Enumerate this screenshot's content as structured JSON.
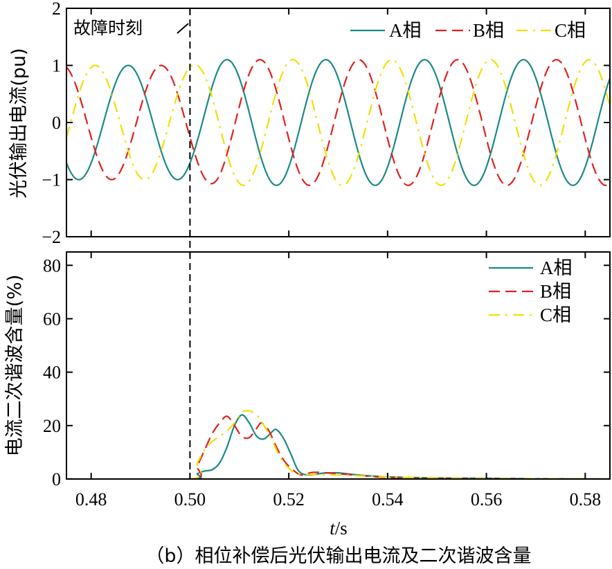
{
  "caption": "（b）相位补偿后光伏输出电流及二次谐波含量",
  "fault_label": "故障时刻",
  "fault_time": 0.5,
  "colors": {
    "A": "#1a8a85",
    "B": "#e0201c",
    "C": "#f0e000",
    "axis": "#000000"
  },
  "chart_data": [
    {
      "type": "line",
      "ylabel": "光伏输出电流(pu)",
      "xlim": [
        0.475,
        0.585
      ],
      "ylim": [
        -2,
        2
      ],
      "yticks": [
        "2",
        "1",
        "0",
        "−1",
        "−2"
      ],
      "yticks_values": [
        2,
        1,
        0,
        -1,
        -2
      ],
      "legend_placement": "top-right",
      "frequency_hz": 50,
      "series": [
        {
          "name": "A相",
          "style": "solid",
          "amplitude_before": 1.0,
          "amplitude_after": 1.1,
          "phase_deg": 0,
          "samples": [
            [
              0.475,
              -1.0
            ],
            [
              0.48,
              -0.5
            ],
            [
              0.485,
              1.0
            ],
            [
              0.49,
              0.0
            ],
            [
              0.495,
              -1.0
            ],
            [
              0.5,
              -0.3
            ],
            [
              0.505,
              1.0
            ],
            [
              0.51,
              -0.6
            ],
            [
              0.515,
              -1.1
            ],
            [
              0.52,
              0.5
            ],
            [
              0.525,
              1.1
            ],
            [
              0.535,
              -1.1
            ],
            [
              0.545,
              1.1
            ],
            [
              0.555,
              -1.1
            ],
            [
              0.565,
              1.1
            ],
            [
              0.575,
              -1.1
            ],
            [
              0.585,
              1.1
            ]
          ]
        },
        {
          "name": "B相",
          "style": "dashed",
          "amplitude_before": 1.0,
          "amplitude_after": 1.1,
          "phase_deg": -120,
          "samples": [
            [
              0.475,
              0.5
            ],
            [
              0.478,
              -0.6
            ],
            [
              0.482,
              -1.0
            ],
            [
              0.492,
              1.0
            ],
            [
              0.5,
              -0.7
            ],
            [
              0.503,
              -0.9
            ],
            [
              0.508,
              1.1
            ],
            [
              0.518,
              -1.1
            ],
            [
              0.528,
              1.1
            ],
            [
              0.538,
              -1.1
            ],
            [
              0.548,
              1.1
            ],
            [
              0.558,
              -1.1
            ],
            [
              0.568,
              1.1
            ],
            [
              0.578,
              -1.1
            ],
            [
              0.585,
              0.0
            ]
          ]
        },
        {
          "name": "C相",
          "style": "dashdot",
          "amplitude_before": 1.0,
          "amplitude_after": 1.1,
          "phase_deg": 120,
          "samples": [
            [
              0.475,
              0.5
            ],
            [
              0.478,
              1.0
            ],
            [
              0.488,
              -1.0
            ],
            [
              0.498,
              1.0
            ],
            [
              0.5,
              0.8
            ],
            [
              0.503,
              -0.5
            ],
            [
              0.507,
              -1.1
            ],
            [
              0.517,
              1.1
            ],
            [
              0.527,
              -1.1
            ],
            [
              0.537,
              1.1
            ],
            [
              0.547,
              -1.1
            ],
            [
              0.557,
              1.1
            ],
            [
              0.567,
              -1.1
            ],
            [
              0.577,
              1.1
            ],
            [
              0.585,
              -1.0
            ]
          ]
        }
      ]
    },
    {
      "type": "line",
      "ylabel": "电流二次谐波含量(%)",
      "xlabel": "t/s",
      "xlabel_italic": "t",
      "xlabel_unit": "/s",
      "xlim": [
        0.475,
        0.585
      ],
      "ylim": [
        0,
        85
      ],
      "xticks": [
        "0.48",
        "0.50",
        "0.52",
        "0.54",
        "0.56",
        "0.58"
      ],
      "xticks_values": [
        0.48,
        0.5,
        0.52,
        0.54,
        0.56,
        0.58
      ],
      "yticks": [
        "80",
        "60",
        "40",
        "20",
        "0"
      ],
      "yticks_values": [
        80,
        60,
        40,
        20,
        0
      ],
      "legend_placement": "top-right",
      "series": [
        {
          "name": "A相",
          "style": "solid",
          "points": [
            [
              0.475,
              0
            ],
            [
              0.5,
              0
            ],
            [
              0.5015,
              2
            ],
            [
              0.503,
              3
            ],
            [
              0.5045,
              3.5
            ],
            [
              0.506,
              6
            ],
            [
              0.5075,
              12
            ],
            [
              0.509,
              20
            ],
            [
              0.5105,
              24
            ],
            [
              0.512,
              21
            ],
            [
              0.5135,
              16
            ],
            [
              0.515,
              15
            ],
            [
              0.5165,
              17.5
            ],
            [
              0.5175,
              18.5
            ],
            [
              0.519,
              15
            ],
            [
              0.5205,
              9
            ],
            [
              0.522,
              3
            ],
            [
              0.524,
              1.5
            ],
            [
              0.527,
              2.2
            ],
            [
              0.53,
              2.3
            ],
            [
              0.534,
              1.5
            ],
            [
              0.54,
              0.8
            ],
            [
              0.55,
              0.4
            ],
            [
              0.56,
              0.3
            ],
            [
              0.57,
              0.1
            ],
            [
              0.585,
              0
            ]
          ]
        },
        {
          "name": "B相",
          "style": "dashed",
          "points": [
            [
              0.475,
              0
            ],
            [
              0.5,
              0
            ],
            [
              0.5015,
              5
            ],
            [
              0.503,
              11
            ],
            [
              0.5045,
              17
            ],
            [
              0.506,
              21
            ],
            [
              0.5075,
              23.5
            ],
            [
              0.509,
              20
            ],
            [
              0.5105,
              16
            ],
            [
              0.512,
              15.5
            ],
            [
              0.5135,
              19
            ],
            [
              0.5145,
              21
            ],
            [
              0.516,
              18
            ],
            [
              0.5175,
              12
            ],
            [
              0.519,
              7
            ],
            [
              0.5205,
              4
            ],
            [
              0.5225,
              1.5
            ],
            [
              0.525,
              2.5
            ],
            [
              0.53,
              2
            ],
            [
              0.535,
              1.2
            ],
            [
              0.54,
              0.6
            ],
            [
              0.55,
              0.2
            ],
            [
              0.585,
              0
            ]
          ]
        },
        {
          "name": "C相",
          "style": "dashdot",
          "points": [
            [
              0.475,
              0
            ],
            [
              0.5,
              0
            ],
            [
              0.5015,
              6
            ],
            [
              0.503,
              11
            ],
            [
              0.5045,
              14
            ],
            [
              0.506,
              16
            ],
            [
              0.5075,
              18
            ],
            [
              0.509,
              21
            ],
            [
              0.5105,
              25
            ],
            [
              0.512,
              25.5
            ],
            [
              0.5135,
              24
            ],
            [
              0.515,
              20
            ],
            [
              0.5165,
              15
            ],
            [
              0.518,
              9
            ],
            [
              0.5195,
              5
            ],
            [
              0.521,
              2.5
            ],
            [
              0.523,
              1.8
            ],
            [
              0.53,
              1.5
            ],
            [
              0.54,
              0.8
            ],
            [
              0.55,
              0.4
            ],
            [
              0.56,
              0.2
            ],
            [
              0.585,
              0
            ]
          ]
        }
      ]
    }
  ]
}
